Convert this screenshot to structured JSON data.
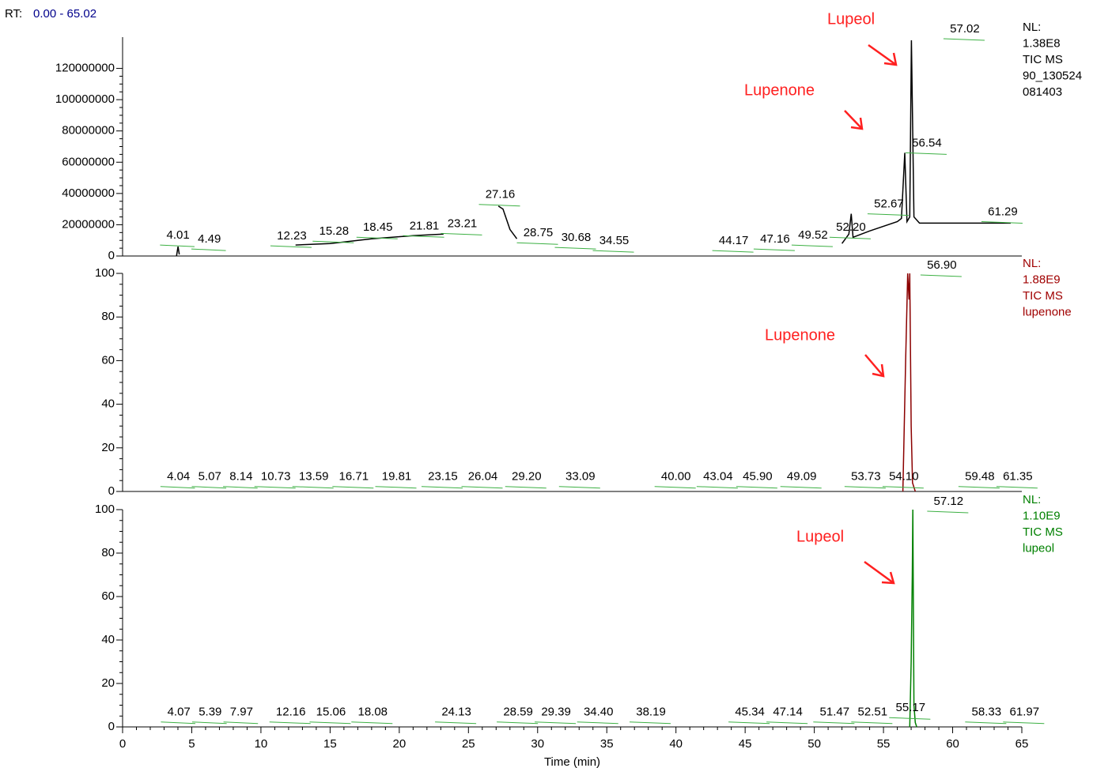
{
  "header": {
    "rt_prefix": "RT:",
    "rt_range": "0.00 - 65.02"
  },
  "chart_data": [
    {
      "type": "line",
      "xlim": [
        0,
        65
      ],
      "ylim": [
        0,
        140000000
      ],
      "yticks": [
        0,
        20000000,
        40000000,
        60000000,
        80000000,
        100000000,
        120000000
      ],
      "series": [
        {
          "color": "#000000",
          "x": [
            3.9,
            4.01,
            4.1,
            10.5,
            12.5,
            15,
            18,
            21,
            23.2,
            27,
            27.16,
            27.5,
            28,
            28.5,
            49,
            52,
            52.5,
            52.67,
            52.8,
            54,
            56,
            56.3,
            56.54,
            56.7,
            56.9,
            57.02,
            57.2,
            57.6,
            60,
            61.29,
            63,
            64.2
          ],
          "values": [
            0,
            6000000,
            1000000,
            null,
            7000000,
            8000000,
            11000000,
            13000000,
            14000000,
            null,
            32000000,
            30000000,
            17000000,
            11000000,
            null,
            8000000,
            14000000,
            27000000,
            12000000,
            16000000,
            22000000,
            24000000,
            66000000,
            22000000,
            25000000,
            138000000,
            25000000,
            21000000,
            21000000,
            21000000,
            21000000,
            21000000
          ]
        }
      ],
      "peak_rt": [
        4.01,
        4.49,
        12.23,
        15.28,
        18.45,
        21.81,
        23.21,
        27.16,
        28.75,
        30.68,
        34.55,
        44.17,
        47.16,
        49.52,
        52.2,
        52.67,
        56.54,
        57.02,
        61.29
      ],
      "peak_rt_labels": [
        "4.01",
        "4.49",
        "12.23",
        "15.28",
        "18.45",
        "21.81",
        "23.21",
        "27.16",
        "28.75",
        "30.68",
        "34.55",
        "44.17",
        "47.16",
        "49.52",
        "52.20",
        "52.67",
        "56.54",
        "57.02",
        "61.29"
      ],
      "peak_height": [
        8000000,
        5500000,
        7500000,
        10500000,
        13000000,
        14000000,
        15500000,
        34000000,
        9500000,
        6500000,
        4500000,
        4500000,
        5500000,
        8000000,
        13000000,
        28000000,
        67000000,
        140000000,
        23000000
      ],
      "note": [
        "NL:",
        "1.38E8",
        "TIC  MS",
        "90_130524",
        "081403"
      ],
      "note_color": "#000000",
      "annotations": [
        "Lupeol",
        "Lupenone"
      ]
    },
    {
      "type": "line",
      "xlim": [
        0,
        65
      ],
      "ylim": [
        0,
        100
      ],
      "yticks": [
        0,
        20,
        40,
        60,
        80,
        100
      ],
      "series": [
        {
          "color": "#8b0000",
          "x": [
            56.4,
            56.6,
            56.75,
            56.85,
            56.9,
            57.0,
            57.1,
            57.3
          ],
          "values": [
            0,
            60,
            100,
            88,
            100,
            30,
            4,
            0
          ]
        }
      ],
      "peak_rt": [
        4.04,
        5.07,
        8.14,
        10.73,
        13.59,
        16.71,
        19.81,
        23.15,
        26.04,
        29.2,
        33.09,
        40,
        43.04,
        45.9,
        49.09,
        53.73,
        54.1,
        56.9,
        59.48,
        61.35
      ],
      "peak_rt_labels": [
        "4.04",
        "5.07",
        "8.14",
        "10.73",
        "13.59",
        "16.71",
        "19.81",
        "23.15",
        "26.04",
        "29.20",
        "33.09",
        "40.00",
        "43.04",
        "45.90",
        "49.09",
        "53.73",
        "54.10",
        "56.90",
        "59.48",
        "61.35"
      ],
      "peak_height": [
        3,
        3,
        3,
        3,
        3,
        3,
        3,
        3,
        3,
        3,
        3,
        3,
        3,
        3,
        3,
        3,
        3,
        100,
        3,
        3
      ],
      "note": [
        "NL:",
        "1.88E9",
        "TIC  MS",
        "lupenone"
      ],
      "note_color": "#a00000",
      "annotations": [
        "Lupenone"
      ]
    },
    {
      "type": "line",
      "xlim": [
        0,
        65
      ],
      "ylim": [
        0,
        100
      ],
      "yticks": [
        0,
        20,
        40,
        60,
        80,
        100
      ],
      "xticks": [
        0,
        5,
        10,
        15,
        20,
        25,
        30,
        35,
        40,
        45,
        50,
        55,
        60,
        65
      ],
      "xlabel": "Time (min)",
      "series": [
        {
          "color": "#008000",
          "x": [
            56.9,
            57.0,
            57.08,
            57.12,
            57.2,
            57.3,
            57.4
          ],
          "values": [
            0,
            30,
            70,
            100,
            10,
            2,
            0
          ]
        }
      ],
      "peak_rt": [
        4.07,
        5.39,
        7.97,
        12.16,
        15.06,
        18.08,
        24.13,
        28.59,
        29.39,
        34.4,
        38.19,
        45.34,
        47.14,
        51.47,
        52.51,
        55.17,
        57.12,
        58.33,
        61.97
      ],
      "peak_rt_labels": [
        "4.07",
        "5.39",
        "7.97",
        "12.16",
        "15.06",
        "18.08",
        "24.13",
        "28.59",
        "29.39",
        "34.40",
        "38.19",
        "45.34",
        "47.14",
        "51.47",
        "52.51",
        "55.17",
        "57.12",
        "58.33",
        "61.97"
      ],
      "peak_height": [
        3,
        3,
        3,
        3,
        3,
        3,
        3,
        3,
        3,
        3,
        3,
        3,
        3,
        3,
        3,
        5,
        100,
        3,
        3
      ],
      "note": [
        "NL:",
        "1.10E9",
        "TIC  MS",
        "lupeol"
      ],
      "note_color": "#008000",
      "annotations": [
        "Lupeol"
      ]
    }
  ]
}
